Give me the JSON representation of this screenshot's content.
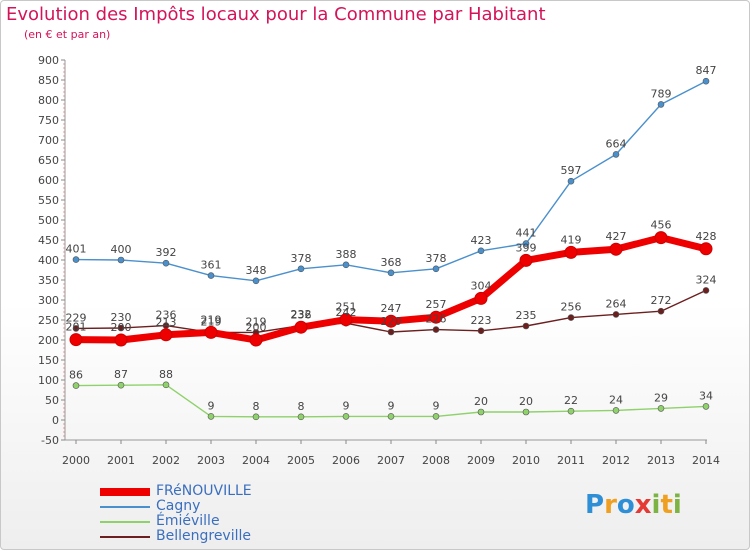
{
  "header": {
    "title": "Evolution des Impôts locaux pour la Commune par Habitant",
    "subtitle": "(en € et par an)"
  },
  "logo": {
    "letters": [
      "P",
      "r",
      "o",
      "x",
      "i",
      "t",
      "i"
    ],
    "colors": [
      "#2f8fd6",
      "#f0a020",
      "#2f8fd6",
      "#e53935",
      "#7cb342",
      "#f0a020",
      "#7cb342"
    ]
  },
  "chart_data": {
    "type": "line",
    "title": "Evolution des Impôts locaux pour la Commune par Habitant",
    "subtitle": "(en € et par an)",
    "x": [
      "2000",
      "2001",
      "2002",
      "2003",
      "2004",
      "2005",
      "2006",
      "2007",
      "2008",
      "2009",
      "2010",
      "2011",
      "2012",
      "2013",
      "2014"
    ],
    "ylim": [
      -50,
      900
    ],
    "yticks": [
      -50,
      0,
      50,
      100,
      150,
      200,
      250,
      300,
      350,
      400,
      450,
      500,
      550,
      600,
      650,
      700,
      750,
      800,
      850,
      900
    ],
    "grid": false,
    "legend_position": "bottom-left",
    "series": [
      {
        "name": "FRéNOUVILLE",
        "color": "#ee0000",
        "values": [
          201,
          200,
          213,
          219,
          200,
          232,
          251,
          247,
          257,
          304,
          399,
          419,
          427,
          456,
          428
        ]
      },
      {
        "name": "Cagny",
        "color": "#4a90cc",
        "values": [
          401,
          400,
          392,
          361,
          348,
          378,
          388,
          368,
          378,
          423,
          441,
          597,
          664,
          789,
          847
        ]
      },
      {
        "name": "Émiéville",
        "color": "#8fd16b",
        "values": [
          86,
          87,
          88,
          9,
          8,
          8,
          9,
          9,
          9,
          20,
          20,
          22,
          24,
          29,
          34
        ]
      },
      {
        "name": "Bellengreville",
        "color": "#6b1f1f",
        "values": [
          229,
          230,
          236,
          219,
          219,
          236,
          242,
          220,
          226,
          223,
          235,
          256,
          264,
          272,
          324
        ]
      }
    ]
  }
}
